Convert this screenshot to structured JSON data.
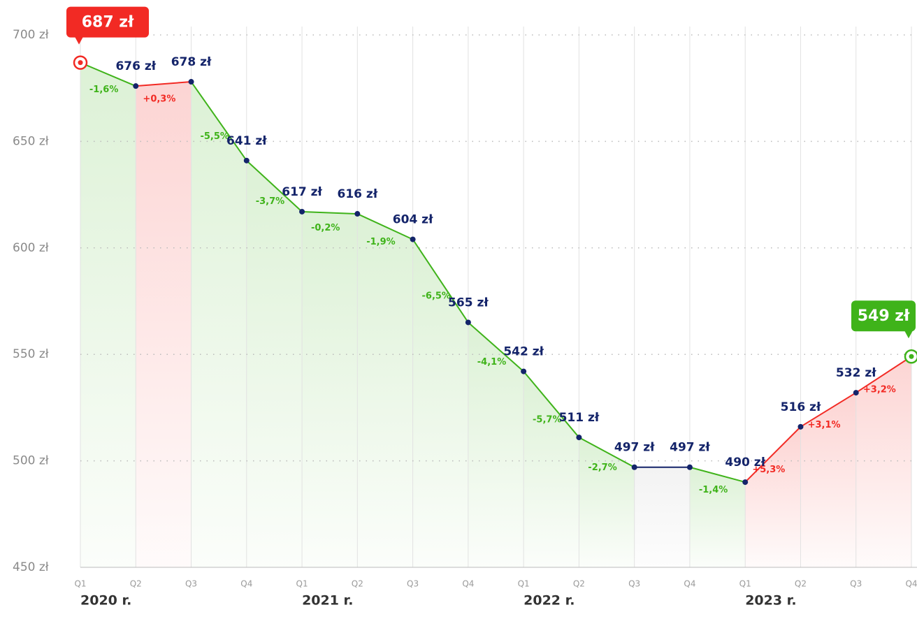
{
  "chart_data": {
    "type": "line",
    "categories": [
      "Q1",
      "Q2",
      "Q3",
      "Q4",
      "Q1",
      "Q2",
      "Q3",
      "Q4",
      "Q1",
      "Q2",
      "Q3",
      "Q4",
      "Q1",
      "Q2",
      "Q3",
      "Q4"
    ],
    "year_labels": [
      "2020 r.",
      "2021 r.",
      "2022 r.",
      "2023 r."
    ],
    "values": [
      687,
      676,
      678,
      641,
      617,
      616,
      604,
      565,
      542,
      511,
      497,
      497,
      490,
      516,
      532,
      549
    ],
    "value_labels": [
      "687 zł",
      "676 zł",
      "678 zł",
      "641 zł",
      "617 zł",
      "616 zł",
      "604 zł",
      "565 zł",
      "542 zł",
      "511 zł",
      "497 zł",
      "497 zł",
      "490 zł",
      "516 zł",
      "532 zł",
      "549 zł"
    ],
    "changes": [
      -1.6,
      0.3,
      -5.5,
      -3.7,
      -0.2,
      -1.9,
      -6.5,
      -4.1,
      -5.7,
      -2.7,
      null,
      -1.4,
      5.3,
      3.1,
      3.2
    ],
    "change_labels": [
      "-1,6%",
      "+0,3%",
      "-5,5%",
      "-3,7%",
      "-0,2%",
      "-1,9%",
      "-6,5%",
      "-4,1%",
      "-5,7%",
      "-2,7%",
      null,
      "-1,4%",
      "+5,3%",
      "+3,1%",
      "+3,2%"
    ],
    "ylim": [
      450,
      700
    ],
    "yticks": [
      {
        "value": 450,
        "label": "450 zł"
      },
      {
        "value": 500,
        "label": "500 zł"
      },
      {
        "value": 550,
        "label": "550 zł"
      },
      {
        "value": 600,
        "label": "600 zł"
      },
      {
        "value": 650,
        "label": "650 zł"
      },
      {
        "value": 700,
        "label": "700 zł"
      }
    ],
    "grid": true,
    "down_color": "#3fb31a",
    "up_color": "#f22a24",
    "flat_color": "#14246a",
    "start_color": "#f22a24",
    "end_color": "#3fb31a",
    "point_color": "#14246a"
  }
}
